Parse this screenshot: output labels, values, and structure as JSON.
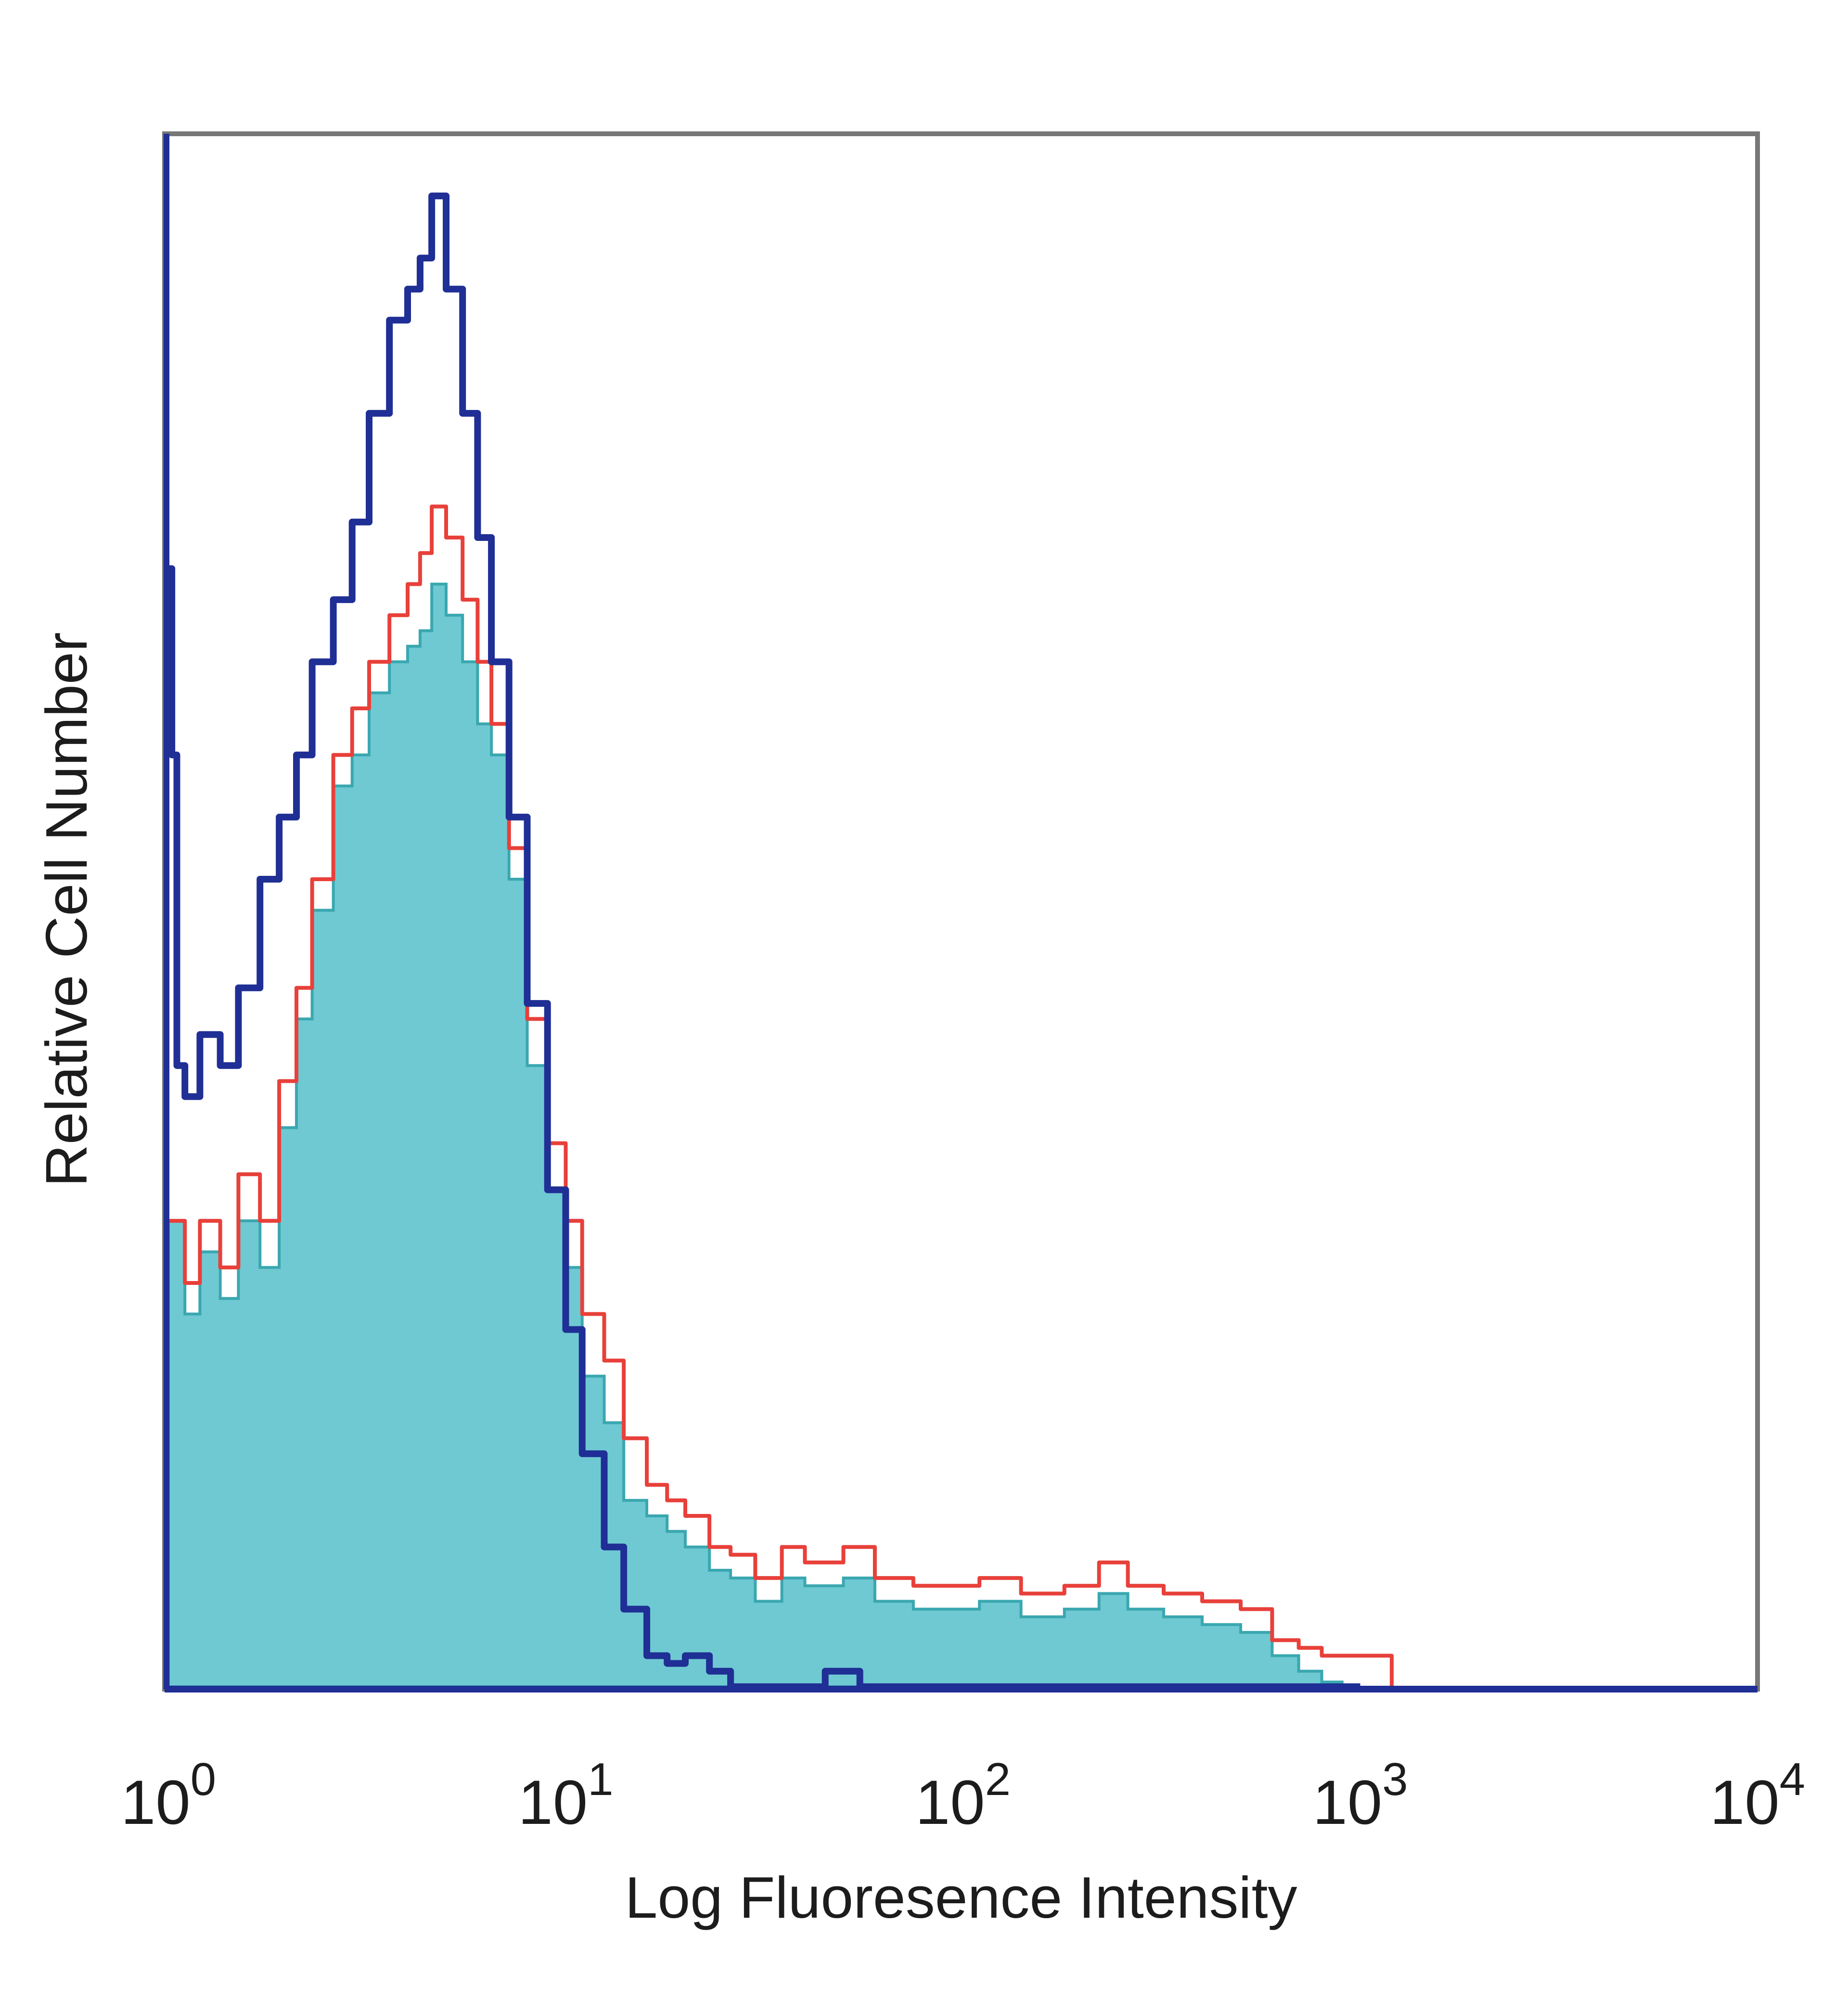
{
  "chart_data": {
    "type": "area",
    "xlabel": "Log Fluoresence Intensity",
    "ylabel": "Relative Cell Number",
    "x_scale": "log",
    "xlim": [
      1,
      10000
    ],
    "ylim": [
      0,
      1
    ],
    "grid": false,
    "xticks": [
      {
        "base": "10",
        "exp": "0"
      },
      {
        "base": "10",
        "exp": "1"
      },
      {
        "base": "10",
        "exp": "2"
      },
      {
        "base": "10",
        "exp": "3"
      },
      {
        "base": "10",
        "exp": "4"
      }
    ],
    "colors": {
      "filled": "#6fc9d2",
      "filled_edge": "#3aa7b0",
      "red": "#e8403a",
      "blue": "#1f2f95",
      "frame": "#777777",
      "axis": "#1f2f95"
    },
    "series": [
      {
        "style": "filled",
        "points": [
          [
            1.0,
            0.3
          ],
          [
            1.1,
            0.24
          ],
          [
            1.2,
            0.28
          ],
          [
            1.35,
            0.25
          ],
          [
            1.5,
            0.3
          ],
          [
            1.7,
            0.27
          ],
          [
            1.9,
            0.36
          ],
          [
            2.1,
            0.43
          ],
          [
            2.3,
            0.5
          ],
          [
            2.6,
            0.58
          ],
          [
            2.9,
            0.6
          ],
          [
            3.2,
            0.64
          ],
          [
            3.6,
            0.66
          ],
          [
            4.0,
            0.67
          ],
          [
            4.3,
            0.68
          ],
          [
            4.6,
            0.71
          ],
          [
            5.0,
            0.69
          ],
          [
            5.5,
            0.66
          ],
          [
            6.0,
            0.62
          ],
          [
            6.5,
            0.6
          ],
          [
            7.2,
            0.52
          ],
          [
            8.0,
            0.4
          ],
          [
            9.0,
            0.32
          ],
          [
            10.0,
            0.27
          ],
          [
            11.0,
            0.2
          ],
          [
            12.5,
            0.17
          ],
          [
            14.0,
            0.12
          ],
          [
            16.0,
            0.11
          ],
          [
            18.0,
            0.1
          ],
          [
            20.0,
            0.09
          ],
          [
            23.0,
            0.075
          ],
          [
            26.0,
            0.07
          ],
          [
            30.0,
            0.055
          ],
          [
            35.0,
            0.07
          ],
          [
            40.0,
            0.065
          ],
          [
            50.0,
            0.07
          ],
          [
            60.0,
            0.055
          ],
          [
            75.0,
            0.05
          ],
          [
            90.0,
            0.05
          ],
          [
            110.0,
            0.055
          ],
          [
            140.0,
            0.045
          ],
          [
            180.0,
            0.05
          ],
          [
            220.0,
            0.06
          ],
          [
            260.0,
            0.05
          ],
          [
            320.0,
            0.045
          ],
          [
            400.0,
            0.04
          ],
          [
            500.0,
            0.035
          ],
          [
            600.0,
            0.02
          ],
          [
            700.0,
            0.01
          ],
          [
            800.0,
            0.003
          ],
          [
            900.0,
            0.0
          ]
        ]
      },
      {
        "style": "line",
        "color": "red",
        "points": [
          [
            1.0,
            0.3
          ],
          [
            1.1,
            0.26
          ],
          [
            1.2,
            0.3
          ],
          [
            1.35,
            0.27
          ],
          [
            1.5,
            0.33
          ],
          [
            1.7,
            0.3
          ],
          [
            1.9,
            0.39
          ],
          [
            2.1,
            0.45
          ],
          [
            2.3,
            0.52
          ],
          [
            2.6,
            0.6
          ],
          [
            2.9,
            0.63
          ],
          [
            3.2,
            0.66
          ],
          [
            3.6,
            0.69
          ],
          [
            4.0,
            0.71
          ],
          [
            4.3,
            0.73
          ],
          [
            4.6,
            0.76
          ],
          [
            5.0,
            0.74
          ],
          [
            5.5,
            0.7
          ],
          [
            6.0,
            0.66
          ],
          [
            6.5,
            0.62
          ],
          [
            7.2,
            0.54
          ],
          [
            8.0,
            0.43
          ],
          [
            9.0,
            0.35
          ],
          [
            10.0,
            0.3
          ],
          [
            11.0,
            0.24
          ],
          [
            12.5,
            0.21
          ],
          [
            14.0,
            0.16
          ],
          [
            16.0,
            0.13
          ],
          [
            18.0,
            0.12
          ],
          [
            20.0,
            0.11
          ],
          [
            23.0,
            0.09
          ],
          [
            26.0,
            0.085
          ],
          [
            30.0,
            0.07
          ],
          [
            35.0,
            0.09
          ],
          [
            40.0,
            0.08
          ],
          [
            50.0,
            0.09
          ],
          [
            60.0,
            0.07
          ],
          [
            75.0,
            0.065
          ],
          [
            90.0,
            0.065
          ],
          [
            110.0,
            0.07
          ],
          [
            140.0,
            0.06
          ],
          [
            180.0,
            0.065
          ],
          [
            220.0,
            0.08
          ],
          [
            260.0,
            0.065
          ],
          [
            320.0,
            0.06
          ],
          [
            400.0,
            0.055
          ],
          [
            500.0,
            0.05
          ],
          [
            600.0,
            0.03
          ],
          [
            700.0,
            0.025
          ],
          [
            800.0,
            0.02
          ],
          [
            900.0,
            0.02
          ],
          [
            1100.0,
            0.02
          ],
          [
            1200.0,
            0.0
          ]
        ]
      },
      {
        "style": "line",
        "color": "blue",
        "points": [
          [
            1.0,
            0.72
          ],
          [
            1.02,
            0.6
          ],
          [
            1.05,
            0.4
          ],
          [
            1.1,
            0.38
          ],
          [
            1.2,
            0.42
          ],
          [
            1.35,
            0.4
          ],
          [
            1.5,
            0.45
          ],
          [
            1.7,
            0.52
          ],
          [
            1.9,
            0.56
          ],
          [
            2.1,
            0.6
          ],
          [
            2.3,
            0.66
          ],
          [
            2.6,
            0.7
          ],
          [
            2.9,
            0.75
          ],
          [
            3.2,
            0.82
          ],
          [
            3.6,
            0.88
          ],
          [
            4.0,
            0.9
          ],
          [
            4.3,
            0.92
          ],
          [
            4.6,
            0.96
          ],
          [
            5.0,
            0.9
          ],
          [
            5.5,
            0.82
          ],
          [
            6.0,
            0.74
          ],
          [
            6.5,
            0.66
          ],
          [
            7.2,
            0.56
          ],
          [
            8.0,
            0.44
          ],
          [
            9.0,
            0.32
          ],
          [
            10.0,
            0.23
          ],
          [
            11.0,
            0.15
          ],
          [
            12.5,
            0.09
          ],
          [
            14.0,
            0.05
          ],
          [
            16.0,
            0.02
          ],
          [
            18.0,
            0.015
          ],
          [
            20.0,
            0.02
          ],
          [
            23.0,
            0.01
          ],
          [
            26.0,
            0.0
          ],
          [
            30.0,
            0.0
          ],
          [
            35.0,
            0.0
          ],
          [
            45.0,
            0.01
          ],
          [
            55.0,
            0.0
          ],
          [
            65.0,
            0.0
          ],
          [
            80.0,
            0.0
          ],
          [
            1000.0,
            0.0
          ]
        ]
      }
    ]
  }
}
